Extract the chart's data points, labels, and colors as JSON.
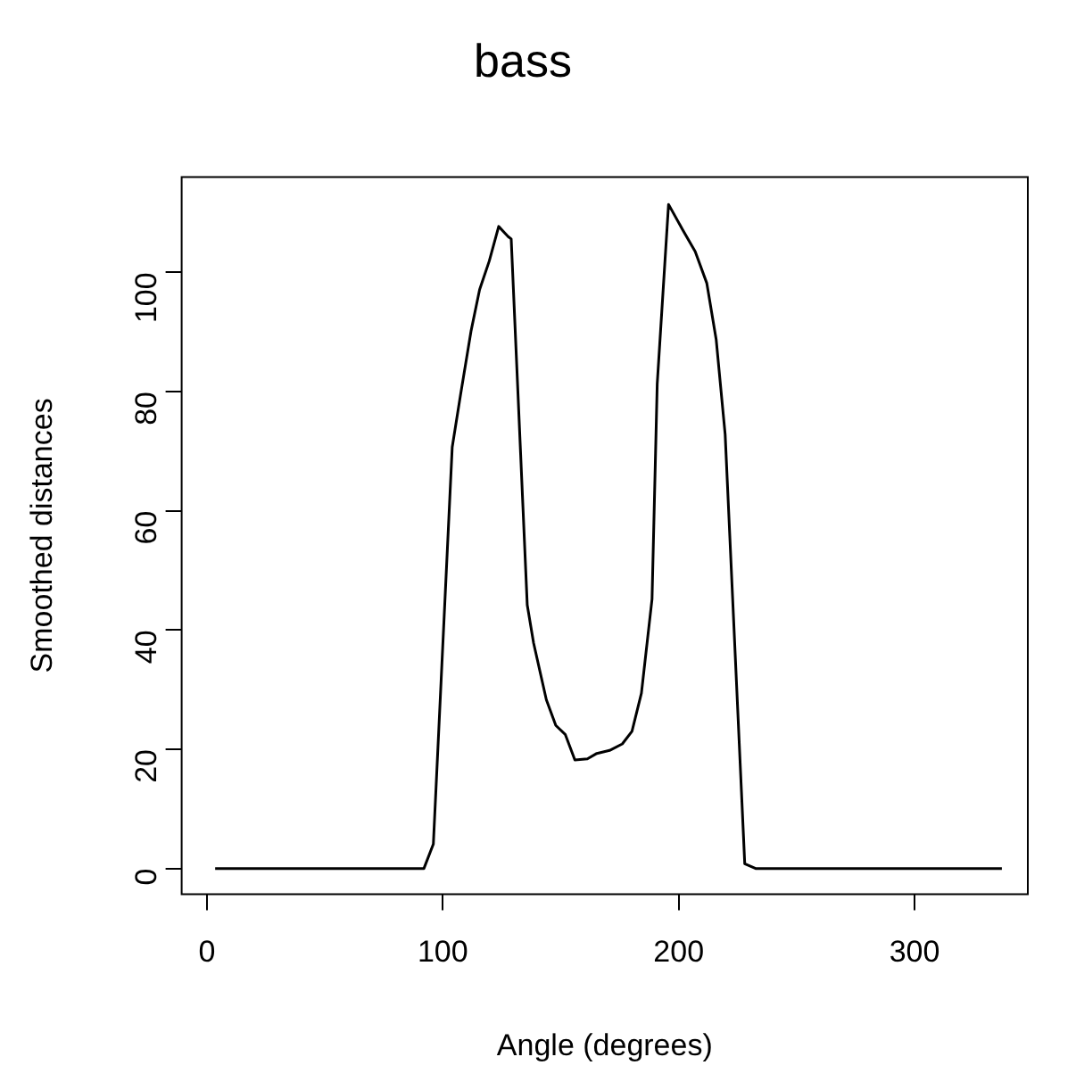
{
  "chart_data": {
    "type": "line",
    "title": "bass",
    "xlabel": "Angle (degrees)",
    "ylabel": "Smoothed distances",
    "x": [
      3.5,
      92,
      96,
      104,
      107.5,
      112,
      115.6,
      119.7,
      123.7,
      127.7,
      129,
      135.8,
      138.5,
      143.9,
      147.9,
      151.9,
      156,
      161.3,
      165.3,
      170.7,
      176.1,
      180.2,
      184.2,
      188.7,
      190.9,
      195.7,
      201.6,
      207,
      211.9,
      215.9,
      219.7,
      228,
      232.6,
      337
    ],
    "series": [
      {
        "color": "#000000",
        "values": [
          0,
          0,
          4.1,
          70.7,
          79.4,
          90.2,
          97.1,
          101.9,
          107.7,
          106,
          105.6,
          44.2,
          37.8,
          28.3,
          24,
          22.5,
          18.2,
          18.4,
          19.3,
          19.8,
          20.9,
          23,
          29.4,
          45.2,
          81.3,
          111.4,
          107.2,
          103.5,
          98.2,
          88.7,
          72.8,
          0.8,
          0,
          0
        ]
      }
    ],
    "xlim": [
      -10.7,
      348
    ],
    "xticks": [
      0,
      100,
      200,
      300
    ],
    "ylim": [
      -4.3,
      116
    ],
    "yticks": [
      0,
      20,
      40,
      60,
      80,
      100
    ],
    "grid": false,
    "legend": false,
    "marker": "none",
    "line_style": "solid"
  }
}
